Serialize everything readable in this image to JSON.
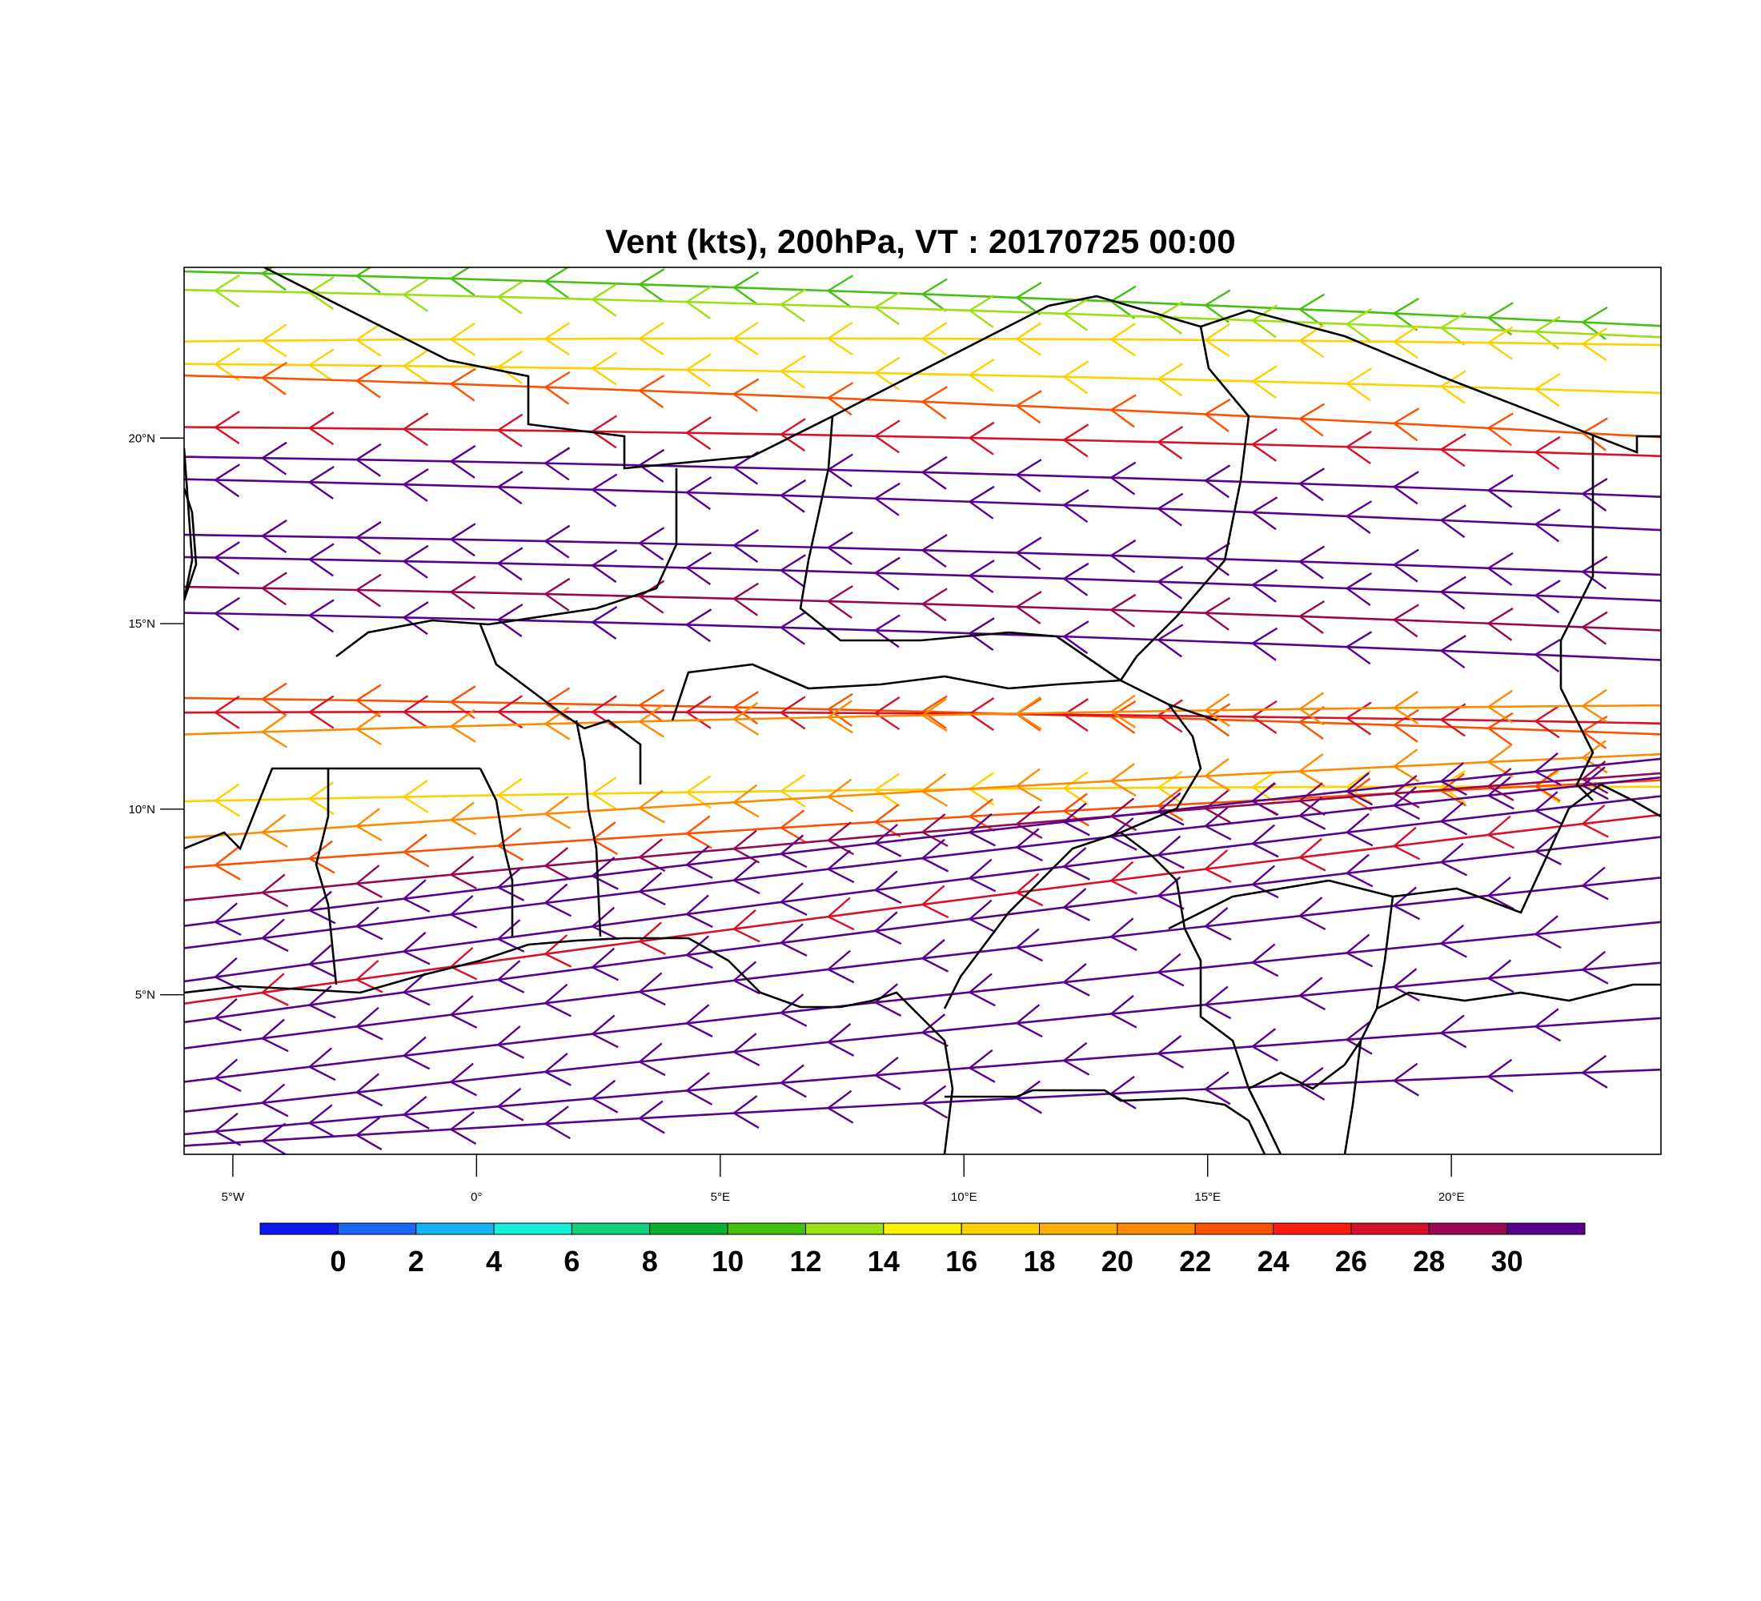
{
  "title": "Vent (kts), 200hPa, VT : 20170725  00:00",
  "map": {
    "lon_range": [
      -6,
      24.3
    ],
    "lat_range": [
      0.7,
      24.6
    ],
    "lat_ticks": [
      {
        "value": 20,
        "label": "20°N"
      },
      {
        "value": 15,
        "label": "15°N"
      },
      {
        "value": 10,
        "label": "10°N"
      },
      {
        "value": 5,
        "label": "5°N"
      }
    ],
    "lon_ticks": [
      {
        "value": -5,
        "label": "5°W"
      },
      {
        "value": 0,
        "label": "0°"
      },
      {
        "value": 5,
        "label": "5°E"
      },
      {
        "value": 10,
        "label": "10°E"
      },
      {
        "value": 15,
        "label": "15°E"
      },
      {
        "value": 20,
        "label": "20°E"
      }
    ],
    "border_color": "#000000"
  },
  "colorbar": {
    "colors": [
      "#0b18f0",
      "#1a66f5",
      "#12b4f6",
      "#14f0da",
      "#10d07e",
      "#0bb030",
      "#44c010",
      "#9be010",
      "#fff000",
      "#ffd000",
      "#ffb000",
      "#ff8a00",
      "#ff5000",
      "#ff1a10",
      "#d8102a",
      "#980850",
      "#5a0090"
    ],
    "labels": [
      "0",
      "2",
      "4",
      "6",
      "8",
      "10",
      "12",
      "14",
      "16",
      "18",
      "20",
      "22",
      "24",
      "26",
      "28",
      "30"
    ]
  },
  "streamlines": [
    {
      "lat_start": 24.5,
      "lat_end": 23.0,
      "speed": 10
    },
    {
      "lat_start": 24.0,
      "lat_end": 22.7,
      "speed": 12
    },
    {
      "lat_start": 22.6,
      "lat_end": 22.5,
      "speed": 16
    },
    {
      "lat_start": 22.0,
      "lat_end": 21.2,
      "speed": 16
    },
    {
      "lat_start": 21.7,
      "lat_end": 20.0,
      "speed": 22
    },
    {
      "lat_start": 20.3,
      "lat_end": 19.5,
      "speed": 26
    },
    {
      "lat_start": 19.5,
      "lat_end": 18.4,
      "speed": 30
    },
    {
      "lat_start": 18.9,
      "lat_end": 17.5,
      "speed": 30
    },
    {
      "lat_start": 17.4,
      "lat_end": 16.3,
      "speed": 30
    },
    {
      "lat_start": 16.8,
      "lat_end": 15.6,
      "speed": 30
    },
    {
      "lat_start": 16.0,
      "lat_end": 14.8,
      "speed": 28
    },
    {
      "lat_start": 15.3,
      "lat_end": 14.0,
      "speed": 30
    },
    {
      "lat_start": 13.0,
      "lat_end": 12.0,
      "speed": 22
    },
    {
      "lat_start": 12.6,
      "lat_end": 12.3,
      "speed": 26
    },
    {
      "lat_start": 12.0,
      "lat_end": 12.8,
      "speed": 20
    },
    {
      "lat_start": 10.2,
      "lat_end": 10.6,
      "speed": 16
    },
    {
      "lat_start": 9.2,
      "lat_end": 11.5,
      "speed": 20
    },
    {
      "lat_start": 8.4,
      "lat_end": 10.8,
      "speed": 22
    },
    {
      "lat_start": 7.5,
      "lat_end": 11.0,
      "speed": 28
    },
    {
      "lat_start": 6.8,
      "lat_end": 11.4,
      "speed": 30
    },
    {
      "lat_start": 6.2,
      "lat_end": 10.9,
      "speed": 30
    },
    {
      "lat_start": 5.3,
      "lat_end": 10.4,
      "speed": 30
    },
    {
      "lat_start": 4.7,
      "lat_end": 9.9,
      "speed": 26
    },
    {
      "lat_start": 4.2,
      "lat_end": 9.3,
      "speed": 30
    },
    {
      "lat_start": 3.5,
      "lat_end": 8.2,
      "speed": 30
    },
    {
      "lat_start": 2.6,
      "lat_end": 7.0,
      "speed": 30
    },
    {
      "lat_start": 1.8,
      "lat_end": 5.9,
      "speed": 30
    },
    {
      "lat_start": 1.2,
      "lat_end": 4.4,
      "speed": 30
    },
    {
      "lat_start": 0.9,
      "lat_end": 3.0,
      "speed": 30
    }
  ]
}
